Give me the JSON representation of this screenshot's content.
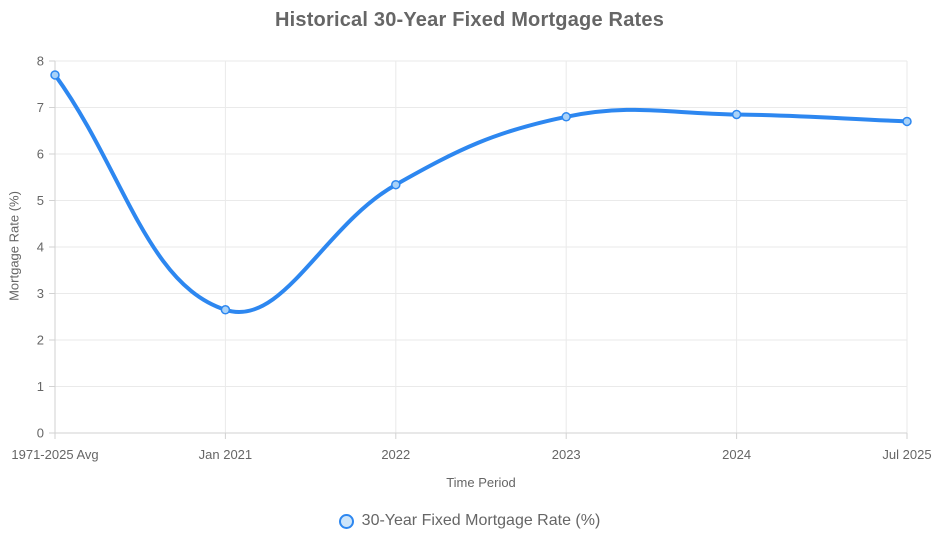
{
  "title": "Historical 30-Year Fixed Mortgage Rates",
  "colors": {
    "line": "#2d87f0",
    "point_fill": "#a9d2f8",
    "legend_marker_fill": "#cde5fa",
    "grid": "#eaeaea",
    "axis_border": "#d2d2d2",
    "text": "#666666"
  },
  "chart_data": {
    "type": "line",
    "title": "Historical 30-Year Fixed Mortgage Rates",
    "categories": [
      "1971-2025 Avg",
      "Jan 2021",
      "2022",
      "2023",
      "2024",
      "Jul 2025"
    ],
    "series": [
      {
        "name": "30-Year Fixed Mortgage Rate (%)",
        "values": [
          7.7,
          2.65,
          5.34,
          6.8,
          6.85,
          6.7
        ]
      }
    ],
    "xlabel": "Time Period",
    "ylabel": "Mortgage Rate (%)",
    "ylim": [
      0,
      8
    ],
    "y_ticks": [
      "0",
      "1",
      "2",
      "3",
      "4",
      "5",
      "6",
      "7",
      "8"
    ],
    "grid": true,
    "legend_position": "bottom",
    "line_tension": 0.4
  }
}
